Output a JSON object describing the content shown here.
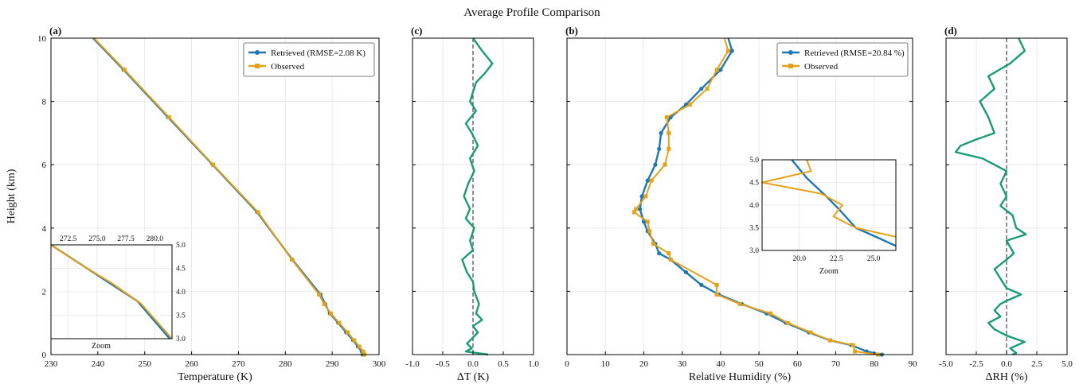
{
  "figure": {
    "title": "Average Profile Comparison",
    "zoom_label": "Zoom"
  },
  "colors": {
    "retrieved": "#1f77b4",
    "observed": "#e3a21a",
    "diff": "#1a9b74",
    "zero_line": "#444444"
  },
  "chart_data": [
    {
      "id": "a",
      "panel_label": "(a)",
      "type": "line",
      "xlabel": "Temperature (K)",
      "ylabel": "Height (km)",
      "xlim": [
        230,
        300
      ],
      "ylim": [
        0,
        10
      ],
      "xticks": [
        230,
        240,
        250,
        260,
        270,
        280,
        290,
        300
      ],
      "yticks": [
        0,
        2,
        4,
        6,
        8,
        10
      ],
      "grid": true,
      "legend": "top-right",
      "series": [
        {
          "name": "Retrieved (RMSE=2.08 K)",
          "color": "#1f77b4",
          "marker": "circle",
          "points": [
            [
              239,
              10
            ],
            [
              245.5,
              9
            ],
            [
              255,
              7.5
            ],
            [
              264.5,
              6
            ],
            [
              274,
              4.5
            ],
            [
              281.5,
              3
            ],
            [
              287.5,
              1.9
            ],
            [
              288.5,
              1.6
            ],
            [
              289.5,
              1.3
            ],
            [
              291.3,
              1.0
            ],
            [
              293,
              0.7
            ],
            [
              294.5,
              0.45
            ],
            [
              295.5,
              0.25
            ],
            [
              296.3,
              0.1
            ],
            [
              296.5,
              0
            ]
          ]
        },
        {
          "name": "Observed",
          "color": "#e3a21a",
          "marker": "square",
          "points": [
            [
              239.2,
              10
            ],
            [
              245.7,
              9
            ],
            [
              255.2,
              7.5
            ],
            [
              264.6,
              6
            ],
            [
              274.2,
              4.5
            ],
            [
              281.4,
              3
            ],
            [
              287.2,
              1.9
            ],
            [
              288.3,
              1.6
            ],
            [
              289.7,
              1.3
            ],
            [
              291.5,
              1.0
            ],
            [
              293.3,
              0.7
            ],
            [
              294.7,
              0.45
            ],
            [
              295.8,
              0.25
            ],
            [
              296.6,
              0.1
            ],
            [
              296.9,
              0
            ]
          ]
        }
      ],
      "inset": {
        "xlabel": "Zoom",
        "xlim": [
          271,
          281.5
        ],
        "ylim": [
          3.0,
          5.0
        ],
        "xticks": [
          272.5,
          275.0,
          277.5,
          280.0
        ],
        "xtick_labels": [
          "272.5",
          "275.0",
          "277.5",
          "280.0"
        ],
        "yticks": [
          3.0,
          3.5,
          4.0,
          4.5,
          5.0
        ],
        "ytick_labels": [
          "3.0",
          "3.5",
          "4.0",
          "4.5",
          "5.0"
        ],
        "series": [
          {
            "name": "Retrieved",
            "color": "#1f77b4",
            "points": [
              [
                271,
                5.0
              ],
              [
                273.5,
                4.6
              ],
              [
                276,
                4.2
              ],
              [
                278.5,
                3.8
              ],
              [
                281.3,
                3.0
              ]
            ]
          },
          {
            "name": "Observed",
            "color": "#e3a21a",
            "points": [
              [
                271,
                5.0
              ],
              [
                273.6,
                4.58
              ],
              [
                276.3,
                4.18
              ],
              [
                278.8,
                3.75
              ],
              [
                281.5,
                3.0
              ]
            ]
          }
        ]
      }
    },
    {
      "id": "c",
      "panel_label": "(c)",
      "type": "line",
      "xlabel": "ΔT (K)",
      "xlim": [
        -1.0,
        1.0
      ],
      "ylim": [
        0,
        10
      ],
      "xticks": [
        -1.0,
        -0.5,
        0.0,
        0.5,
        1.0
      ],
      "xtick_labels": [
        "-1.0",
        "-0.5",
        "0.0",
        "0.5",
        "1.0"
      ],
      "grid": true,
      "reference_line_x": 0,
      "series": [
        {
          "name": "",
          "color": "#1a9b74",
          "points": [
            [
              0.0,
              10
            ],
            [
              0.15,
              9.6
            ],
            [
              0.32,
              9.2
            ],
            [
              0.2,
              8.9
            ],
            [
              0.05,
              8.6
            ],
            [
              0.0,
              8.3
            ],
            [
              -0.05,
              8.0
            ],
            [
              0.05,
              7.7
            ],
            [
              -0.12,
              7.3
            ],
            [
              -0.02,
              7.0
            ],
            [
              0.08,
              6.6
            ],
            [
              -0.05,
              6.2
            ],
            [
              0.02,
              5.8
            ],
            [
              -0.08,
              5.4
            ],
            [
              -0.15,
              5.0
            ],
            [
              -0.05,
              4.6
            ],
            [
              -0.12,
              4.3
            ],
            [
              0.02,
              4.0
            ],
            [
              -0.05,
              3.6
            ],
            [
              0.0,
              3.3
            ],
            [
              -0.18,
              3.0
            ],
            [
              -0.1,
              2.6
            ],
            [
              0.0,
              2.3
            ],
            [
              0.02,
              2.0
            ],
            [
              0.1,
              1.6
            ],
            [
              0.05,
              1.3
            ],
            [
              0.15,
              1.1
            ],
            [
              0.0,
              0.9
            ],
            [
              0.08,
              0.7
            ],
            [
              -0.02,
              0.5
            ],
            [
              -0.1,
              0.35
            ],
            [
              -0.02,
              0.2
            ],
            [
              -0.12,
              0.1
            ],
            [
              0.25,
              0.0
            ]
          ]
        }
      ]
    },
    {
      "id": "b",
      "panel_label": "(b)",
      "type": "line",
      "xlabel": "Relative Humidity (%)",
      "xlim": [
        0,
        90
      ],
      "ylim": [
        0,
        10
      ],
      "xticks": [
        0,
        10,
        20,
        30,
        40,
        50,
        60,
        70,
        80,
        90
      ],
      "grid": true,
      "legend": "top-right",
      "series": [
        {
          "name": "Retrieved (RMSE=20.84 %)",
          "color": "#1f77b4",
          "marker": "circle",
          "points": [
            [
              42,
              10
            ],
            [
              43,
              9.6
            ],
            [
              40,
              9.0
            ],
            [
              35,
              8.4
            ],
            [
              31,
              7.9
            ],
            [
              27,
              7.5
            ],
            [
              24.5,
              7.0
            ],
            [
              24,
              6.5
            ],
            [
              23,
              6.0
            ],
            [
              21,
              5.5
            ],
            [
              19.5,
              5.0
            ],
            [
              19,
              4.6
            ],
            [
              20,
              4.2
            ],
            [
              21,
              3.9
            ],
            [
              23,
              3.5
            ],
            [
              24,
              3.2
            ],
            [
              27,
              3.0
            ],
            [
              31,
              2.6
            ],
            [
              35,
              2.2
            ],
            [
              39.5,
              1.9
            ],
            [
              45.5,
              1.6
            ],
            [
              52,
              1.3
            ],
            [
              57,
              1.0
            ],
            [
              63,
              0.7
            ],
            [
              68.5,
              0.45
            ],
            [
              74,
              0.3
            ],
            [
              78,
              0.1
            ],
            [
              82,
              0
            ]
          ]
        },
        {
          "name": "Observed",
          "color": "#e3a21a",
          "marker": "square",
          "points": [
            [
              41,
              10
            ],
            [
              42,
              9.6
            ],
            [
              39,
              9.0
            ],
            [
              36.5,
              8.4
            ],
            [
              32,
              7.9
            ],
            [
              26,
              7.5
            ],
            [
              26.5,
              7.0
            ],
            [
              26.5,
              6.5
            ],
            [
              25.5,
              6.0
            ],
            [
              22,
              5.5
            ],
            [
              20.5,
              5.0
            ],
            [
              18,
              4.6
            ],
            [
              17.5,
              4.5
            ],
            [
              21,
              4.2
            ],
            [
              21.5,
              3.9
            ],
            [
              22.5,
              3.5
            ],
            [
              26.5,
              3.2
            ],
            [
              27,
              3.0
            ],
            [
              39,
              2.2
            ],
            [
              39,
              1.9
            ],
            [
              45,
              1.6
            ],
            [
              53,
              1.3
            ],
            [
              57.5,
              1.0
            ],
            [
              63.5,
              0.7
            ],
            [
              68.5,
              0.45
            ],
            [
              74.5,
              0.3
            ],
            [
              75,
              0.1
            ],
            [
              81,
              0
            ]
          ]
        }
      ],
      "inset": {
        "xlabel": "Zoom",
        "xlim": [
          17.5,
          26.5
        ],
        "ylim": [
          3.0,
          5.0
        ],
        "xticks": [
          20.0,
          22.5,
          25.0
        ],
        "xtick_labels": [
          "20.0",
          "22.5",
          "25.0"
        ],
        "yticks": [
          3.0,
          3.5,
          4.0,
          4.5,
          5.0
        ],
        "ytick_labels": [
          "3.0",
          "3.5",
          "4.0",
          "4.5",
          "5.0"
        ],
        "series": [
          {
            "name": "Retrieved",
            "color": "#1f77b4",
            "points": [
              [
                19.5,
                5.0
              ],
              [
                20.5,
                4.6
              ],
              [
                21.8,
                4.2
              ],
              [
                22.7,
                3.9
              ],
              [
                23.8,
                3.5
              ],
              [
                25.5,
                3.25
              ],
              [
                26.5,
                3.1
              ]
            ]
          },
          {
            "name": "Observed",
            "color": "#e3a21a",
            "points": [
              [
                20.5,
                5.0
              ],
              [
                20.8,
                4.75
              ],
              [
                17.5,
                4.5
              ],
              [
                21.5,
                4.25
              ],
              [
                22.9,
                4.0
              ],
              [
                22.3,
                3.75
              ],
              [
                23.8,
                3.5
              ],
              [
                26.5,
                3.3
              ]
            ]
          }
        ]
      }
    },
    {
      "id": "d",
      "panel_label": "(d)",
      "type": "line",
      "xlabel": "ΔRH (%)",
      "xlim": [
        -5.0,
        5.0
      ],
      "ylim": [
        0,
        10
      ],
      "xticks": [
        -5.0,
        -2.5,
        0.0,
        2.5,
        5.0
      ],
      "xtick_labels": [
        "-5.0",
        "-2.5",
        "0.0",
        "2.5",
        "5.0"
      ],
      "grid": true,
      "reference_line_x": 0,
      "series": [
        {
          "name": "",
          "color": "#1a9b74",
          "points": [
            [
              1.0,
              10
            ],
            [
              1.5,
              9.6
            ],
            [
              0.3,
              9.2
            ],
            [
              -1.5,
              8.8
            ],
            [
              -1.0,
              8.4
            ],
            [
              -2.2,
              8.0
            ],
            [
              -1.5,
              7.5
            ],
            [
              -1.0,
              7.0
            ],
            [
              -2.5,
              6.8
            ],
            [
              -3.8,
              6.6
            ],
            [
              -4.2,
              6.4
            ],
            [
              -2.0,
              6.2
            ],
            [
              0.0,
              5.8
            ],
            [
              -0.5,
              5.4
            ],
            [
              0.0,
              5.0
            ],
            [
              -0.5,
              4.7
            ],
            [
              0.5,
              4.4
            ],
            [
              0.8,
              4.0
            ],
            [
              1.6,
              3.8
            ],
            [
              0.0,
              3.6
            ],
            [
              0.6,
              3.2
            ],
            [
              0.0,
              3.0
            ],
            [
              -1.0,
              2.7
            ],
            [
              -0.5,
              2.4
            ],
            [
              0.0,
              2.1
            ],
            [
              1.2,
              1.9
            ],
            [
              0.0,
              1.7
            ],
            [
              -0.5,
              1.6
            ],
            [
              -1.0,
              1.4
            ],
            [
              -0.5,
              1.2
            ],
            [
              -1.5,
              1.0
            ],
            [
              -1.0,
              0.8
            ],
            [
              0.0,
              0.6
            ],
            [
              1.5,
              0.4
            ],
            [
              0.3,
              0.2
            ],
            [
              0.8,
              0.05
            ],
            [
              0.5,
              0
            ]
          ]
        }
      ]
    }
  ]
}
